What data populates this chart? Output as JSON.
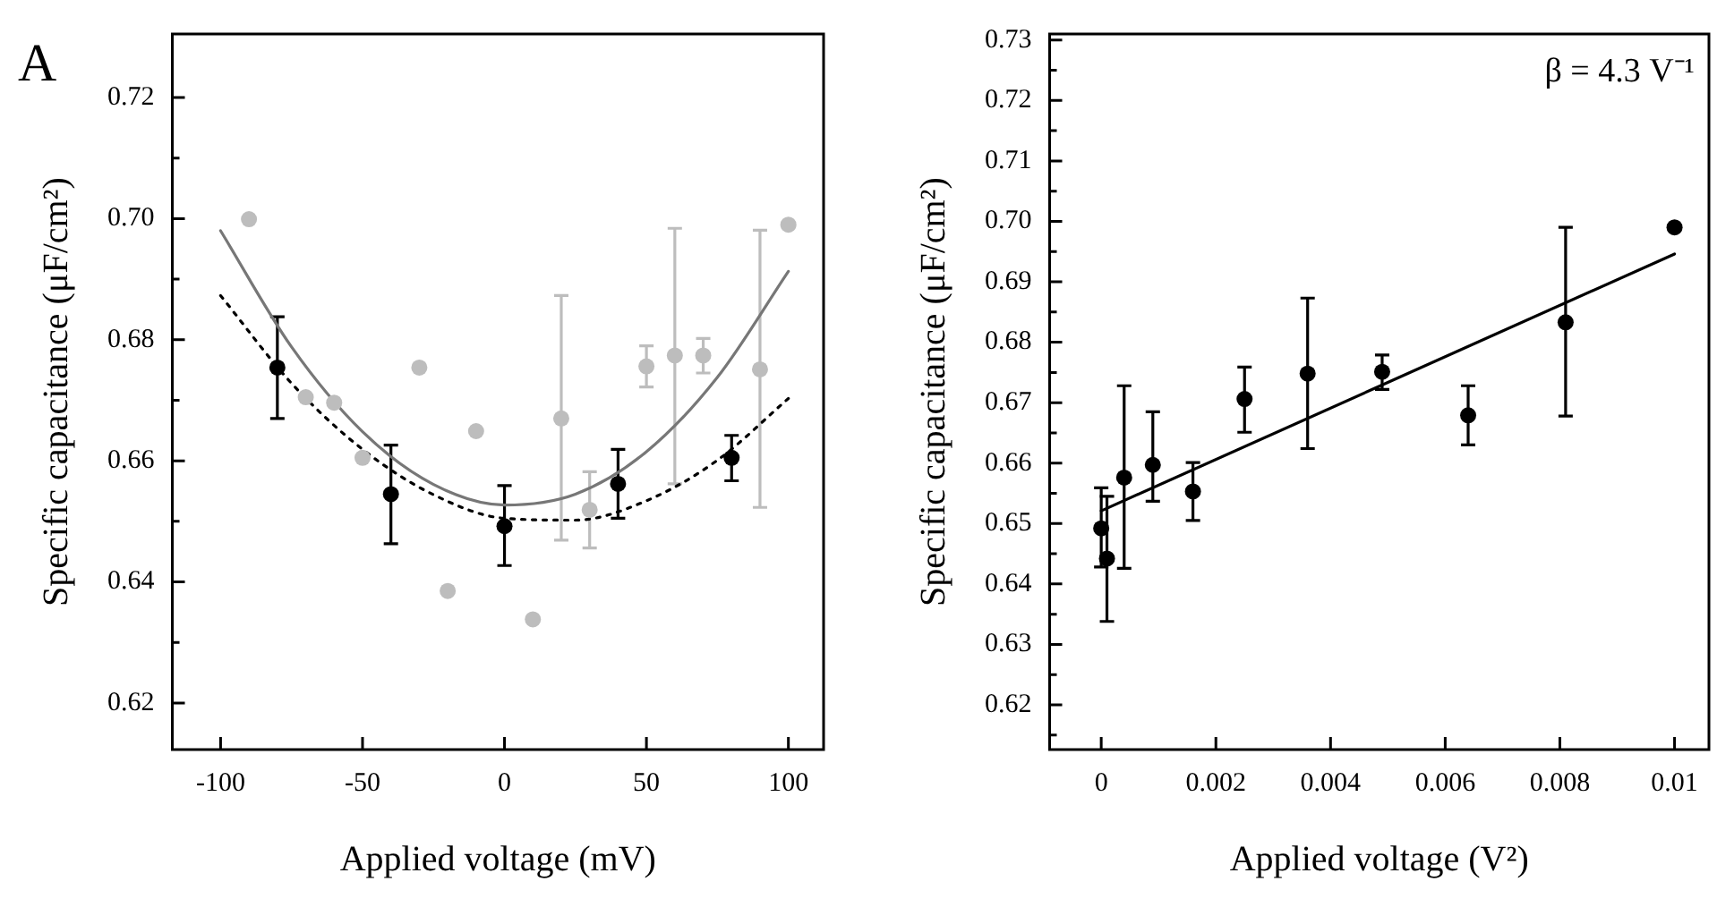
{
  "chart_data": [
    {
      "type": "scatter",
      "annotations": [
        "A"
      ],
      "xlabel": "Applied voltage (mV)",
      "ylabel": "Specific capacitance (μF/cm²)",
      "xlim": [
        -117,
        112.4
      ],
      "ylim": [
        0.6123,
        0.7305
      ],
      "xticks": [
        -100,
        -50,
        0,
        50,
        100
      ],
      "yticks": [
        {
          "value": 0.62,
          "label": "0.62"
        },
        {
          "value": 0.63,
          "label": null
        },
        {
          "value": 0.64,
          "label": "0.64"
        },
        {
          "value": 0.65,
          "label": null
        },
        {
          "value": 0.66,
          "label": "0.66"
        },
        {
          "value": 0.67,
          "label": null
        },
        {
          "value": 0.68,
          "label": "0.68"
        },
        {
          "value": 0.69,
          "label": null
        },
        {
          "value": 0.7,
          "label": "0.70"
        },
        {
          "value": 0.71,
          "label": null
        },
        {
          "value": 0.72,
          "label": "0.72"
        }
      ],
      "grid": false,
      "legend": false,
      "series": [
        {
          "marker": "circle",
          "color": "#bdbdbd",
          "x": [
            -90,
            -70,
            -60,
            -50,
            -30,
            -20,
            -10,
            10,
            20,
            30,
            50,
            60,
            70,
            90,
            100
          ],
          "values": [
            0.6999,
            0.6705,
            0.6696,
            0.6605,
            0.6754,
            0.6385,
            0.6649,
            0.6338,
            0.667,
            0.6519,
            0.6756,
            0.6774,
            0.6774,
            0.6751,
            0.699
          ],
          "errors": [
            null,
            null,
            null,
            null,
            null,
            null,
            null,
            null,
            [
              0.6469,
              0.6873
            ],
            [
              0.6456,
              0.6582
            ],
            [
              0.6722,
              0.679
            ],
            [
              0.6562,
              0.6984
            ],
            [
              0.6745,
              0.6802
            ],
            [
              0.6523,
              0.6981
            ],
            null
          ]
        },
        {
          "type": "line",
          "marker": "none",
          "line_style": "solid",
          "color": "#777777",
          "x": [
            -100,
            -75,
            -50,
            -25,
            0,
            25,
            50,
            75,
            100
          ],
          "values": [
            0.698,
            0.6788,
            0.6648,
            0.6561,
            0.6527,
            0.6545,
            0.6615,
            0.6738,
            0.6913
          ]
        },
        {
          "type": "line",
          "marker": "none",
          "line_style": "dotted",
          "color": "#000000",
          "x": [
            -100,
            -75,
            -50,
            -25,
            0,
            25,
            50,
            75,
            100
          ],
          "values": [
            0.6873,
            0.6728,
            0.6619,
            0.6544,
            0.6505,
            0.6502,
            0.6534,
            0.6601,
            0.6703
          ]
        },
        {
          "marker": "circle",
          "color": "#000000",
          "x": [
            -80,
            -40,
            0,
            40,
            80
          ],
          "values": [
            0.6754,
            0.6545,
            0.6492,
            0.6562,
            0.6605
          ],
          "errors": [
            [
              0.667,
              0.6838
            ],
            [
              0.6463,
              0.6626
            ],
            [
              0.6427,
              0.6559
            ],
            [
              0.6505,
              0.6619
            ],
            [
              0.6567,
              0.6642
            ]
          ]
        }
      ]
    },
    {
      "type": "scatter",
      "annotations": [
        "β = 4.3 V⁻¹"
      ],
      "xlabel": "Applied voltage (V²)",
      "ylabel": "Specific capacitance (μF/cm²)",
      "xlim": [
        -0.0009,
        0.0106
      ],
      "ylim": [
        0.6126,
        0.731
      ],
      "xticks": [
        0,
        0.002,
        0.004,
        0.006,
        0.008,
        0.01
      ],
      "yticks": [
        {
          "value": 0.615,
          "label": null
        },
        {
          "value": 0.62,
          "label": "0.62"
        },
        {
          "value": 0.625,
          "label": null
        },
        {
          "value": 0.63,
          "label": "0.63"
        },
        {
          "value": 0.635,
          "label": null
        },
        {
          "value": 0.64,
          "label": "0.64"
        },
        {
          "value": 0.645,
          "label": null
        },
        {
          "value": 0.65,
          "label": "0.65"
        },
        {
          "value": 0.655,
          "label": null
        },
        {
          "value": 0.66,
          "label": "0.66"
        },
        {
          "value": 0.665,
          "label": null
        },
        {
          "value": 0.67,
          "label": "0.67"
        },
        {
          "value": 0.675,
          "label": null
        },
        {
          "value": 0.68,
          "label": "0.68"
        },
        {
          "value": 0.685,
          "label": null
        },
        {
          "value": 0.69,
          "label": "0.69"
        },
        {
          "value": 0.695,
          "label": null
        },
        {
          "value": 0.7,
          "label": "0.70"
        },
        {
          "value": 0.705,
          "label": null
        },
        {
          "value": 0.71,
          "label": "0.71"
        },
        {
          "value": 0.715,
          "label": null
        },
        {
          "value": 0.72,
          "label": "0.72"
        },
        {
          "value": 0.725,
          "label": null
        },
        {
          "value": 0.73,
          "label": "0.73"
        }
      ],
      "grid": false,
      "legend": false,
      "series": [
        {
          "type": "line",
          "marker": "none",
          "line_style": "solid",
          "color": "#000000",
          "x": [
            0,
            0.01
          ],
          "values": [
            0.6521,
            0.6946
          ]
        },
        {
          "marker": "circle",
          "color": "#000000",
          "x": [
            0,
            0.0001,
            0.0004,
            0.0009,
            0.0016,
            0.0025,
            0.0036,
            0.0049,
            0.0064,
            0.0081,
            0.01
          ],
          "values": [
            0.6492,
            0.6442,
            0.6576,
            0.6597,
            0.6553,
            0.6706,
            0.6748,
            0.6751,
            0.6679,
            0.6833,
            0.699
          ],
          "errors": [
            [
              0.6428,
              0.6559
            ],
            [
              0.6338,
              0.6545
            ],
            [
              0.6426,
              0.6728
            ],
            [
              0.6537,
              0.6685
            ],
            [
              0.6505,
              0.6601
            ],
            [
              0.6651,
              0.6759
            ],
            [
              0.6624,
              0.6873
            ],
            [
              0.6722,
              0.6779
            ],
            [
              0.663,
              0.6728
            ],
            [
              0.6678,
              0.699
            ],
            null
          ]
        }
      ]
    }
  ]
}
